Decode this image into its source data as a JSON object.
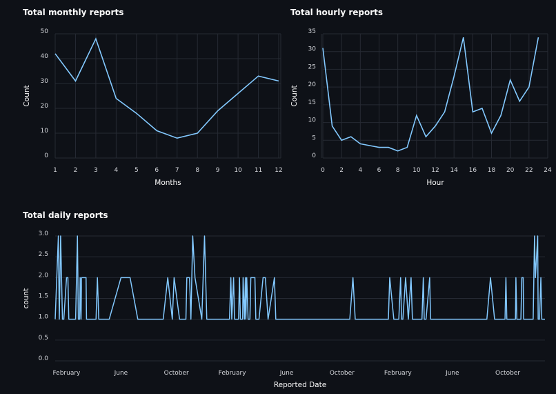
{
  "colors": {
    "background": "#0e1117",
    "line": "#83c9ff",
    "grid": "#262a33",
    "text": "#fafafa",
    "tick_text": "#d5d7dc"
  },
  "chart_data": [
    {
      "type": "line",
      "title": "Total monthly reports",
      "xlabel": "Months",
      "ylabel": "Count",
      "x": [
        1,
        2,
        3,
        4,
        5,
        6,
        7,
        8,
        9,
        10,
        11,
        12
      ],
      "values": [
        42,
        31,
        48,
        24,
        18,
        11,
        8,
        10,
        19,
        26,
        33,
        31
      ],
      "xlim": [
        1,
        12
      ],
      "ylim": [
        0,
        50
      ],
      "xticks": [
        1,
        2,
        3,
        4,
        5,
        6,
        7,
        8,
        9,
        10,
        11,
        12
      ],
      "yticks": [
        0,
        10,
        20,
        30,
        40,
        50
      ],
      "grid": true
    },
    {
      "type": "line",
      "title": "Total hourly reports",
      "xlabel": "Hour",
      "ylabel": "Count",
      "x": [
        0,
        1,
        2,
        3,
        4,
        5,
        6,
        7,
        8,
        9,
        10,
        11,
        12,
        13,
        14,
        15,
        16,
        17,
        18,
        19,
        20,
        21,
        22,
        23
      ],
      "values": [
        31,
        9,
        5,
        6,
        4,
        3.5,
        3,
        3,
        2,
        3,
        12,
        6,
        9,
        13,
        23,
        34,
        13,
        14,
        7,
        12,
        22,
        16,
        20,
        34
      ],
      "xlim": [
        0,
        24
      ],
      "ylim": [
        0,
        35
      ],
      "xticks": [
        0,
        2,
        4,
        6,
        8,
        10,
        12,
        14,
        16,
        18,
        20,
        22,
        24
      ],
      "yticks": [
        0,
        5,
        10,
        15,
        20,
        25,
        30,
        35
      ],
      "grid": true
    },
    {
      "type": "line",
      "title": "Total daily reports",
      "xlabel": "Reported Date",
      "ylabel": "count",
      "ylim": [
        0,
        3
      ],
      "yticks": [
        "0.0",
        "0.5",
        "1.0",
        "1.5",
        "2.0",
        "2.5",
        "3.0"
      ],
      "xticks": [
        {
          "date": "2021-02-01",
          "label": "February"
        },
        {
          "date": "2021-06-01",
          "label": "June"
        },
        {
          "date": "2021-10-01",
          "label": "October"
        },
        {
          "date": "2022-02-01",
          "label": "February"
        },
        {
          "date": "2022-06-01",
          "label": "June"
        },
        {
          "date": "2022-10-01",
          "label": "October"
        },
        {
          "date": "2023-02-01",
          "label": "February"
        },
        {
          "date": "2023-06-01",
          "label": "June"
        },
        {
          "date": "2023-10-01",
          "label": "October"
        }
      ],
      "grid": true,
      "points": [
        [
          "2021-01-07",
          1
        ],
        [
          "2021-01-14",
          3
        ],
        [
          "2021-01-16",
          1
        ],
        [
          "2021-01-19",
          3
        ],
        [
          "2021-01-21",
          2
        ],
        [
          "2021-01-23",
          1
        ],
        [
          "2021-01-26",
          1
        ],
        [
          "2021-02-01",
          2
        ],
        [
          "2021-02-04",
          2
        ],
        [
          "2021-02-06",
          1
        ],
        [
          "2021-02-21",
          1
        ],
        [
          "2021-02-25",
          3
        ],
        [
          "2021-02-27",
          1
        ],
        [
          "2021-03-02",
          1
        ],
        [
          "2021-03-03",
          2
        ],
        [
          "2021-03-05",
          1
        ],
        [
          "2021-03-06",
          2
        ],
        [
          "2021-03-08",
          2
        ],
        [
          "2021-03-16",
          2
        ],
        [
          "2021-03-17",
          1
        ],
        [
          "2021-04-07",
          1
        ],
        [
          "2021-04-10",
          2
        ],
        [
          "2021-04-13",
          1
        ],
        [
          "2021-05-06",
          1
        ],
        [
          "2021-06-01",
          2
        ],
        [
          "2021-06-21",
          2
        ],
        [
          "2021-07-08",
          1
        ],
        [
          "2021-09-02",
          1
        ],
        [
          "2021-09-12",
          2
        ],
        [
          "2021-09-22",
          1
        ],
        [
          "2021-09-26",
          2
        ],
        [
          "2021-10-08",
          1
        ],
        [
          "2021-10-22",
          1
        ],
        [
          "2021-10-24",
          2
        ],
        [
          "2021-10-30",
          2
        ],
        [
          "2021-11-02",
          1
        ],
        [
          "2021-11-06",
          3
        ],
        [
          "2021-11-11",
          2
        ],
        [
          "2021-11-26",
          1
        ],
        [
          "2021-12-02",
          3
        ],
        [
          "2021-12-07",
          1
        ],
        [
          "2022-01-26",
          1
        ],
        [
          "2022-01-29",
          2
        ],
        [
          "2022-01-31",
          1
        ],
        [
          "2022-02-04",
          2
        ],
        [
          "2022-02-06",
          1
        ],
        [
          "2022-02-15",
          1
        ],
        [
          "2022-02-17",
          2
        ],
        [
          "2022-02-19",
          1
        ],
        [
          "2022-02-24",
          1
        ],
        [
          "2022-02-25",
          2
        ],
        [
          "2022-02-28",
          1
        ],
        [
          "2022-03-02",
          2
        ],
        [
          "2022-03-03",
          1
        ],
        [
          "2022-03-05",
          2
        ],
        [
          "2022-03-08",
          1
        ],
        [
          "2022-03-12",
          1
        ],
        [
          "2022-03-14",
          2
        ],
        [
          "2022-03-23",
          2
        ],
        [
          "2022-03-25",
          1
        ],
        [
          "2022-04-01",
          1
        ],
        [
          "2022-04-10",
          2
        ],
        [
          "2022-04-15",
          2
        ],
        [
          "2022-04-21",
          1
        ],
        [
          "2022-05-05",
          2
        ],
        [
          "2022-05-08",
          1
        ],
        [
          "2022-10-18",
          1
        ],
        [
          "2022-10-25",
          2
        ],
        [
          "2022-10-30",
          1
        ],
        [
          "2023-01-11",
          1
        ],
        [
          "2023-01-14",
          2
        ],
        [
          "2023-01-23",
          1
        ],
        [
          "2023-02-03",
          1
        ],
        [
          "2023-02-07",
          2
        ],
        [
          "2023-02-09",
          1
        ],
        [
          "2023-02-12",
          1
        ],
        [
          "2023-02-18",
          2
        ],
        [
          "2023-02-24",
          1
        ],
        [
          "2023-03-02",
          2
        ],
        [
          "2023-03-05",
          1
        ],
        [
          "2023-03-26",
          1
        ],
        [
          "2023-03-29",
          2
        ],
        [
          "2023-03-31",
          1
        ],
        [
          "2023-04-04",
          1
        ],
        [
          "2023-04-12",
          2
        ],
        [
          "2023-04-14",
          1
        ],
        [
          "2023-08-16",
          1
        ],
        [
          "2023-08-24",
          2
        ],
        [
          "2023-09-02",
          1
        ],
        [
          "2023-09-25",
          1
        ],
        [
          "2023-09-27",
          2
        ],
        [
          "2023-09-29",
          1
        ],
        [
          "2023-10-18",
          1
        ],
        [
          "2023-10-19",
          2
        ],
        [
          "2023-10-21",
          1
        ],
        [
          "2023-10-30",
          1
        ],
        [
          "2023-11-01",
          2
        ],
        [
          "2023-11-04",
          2
        ],
        [
          "2023-11-05",
          1
        ],
        [
          "2023-11-26",
          1
        ],
        [
          "2023-11-29",
          3
        ],
        [
          "2023-12-01",
          2
        ],
        [
          "2023-12-06",
          3
        ],
        [
          "2023-12-07",
          1
        ],
        [
          "2023-12-10",
          1
        ],
        [
          "2023-12-13",
          2
        ],
        [
          "2023-12-15",
          1
        ],
        [
          "2023-12-22",
          1
        ]
      ]
    }
  ]
}
